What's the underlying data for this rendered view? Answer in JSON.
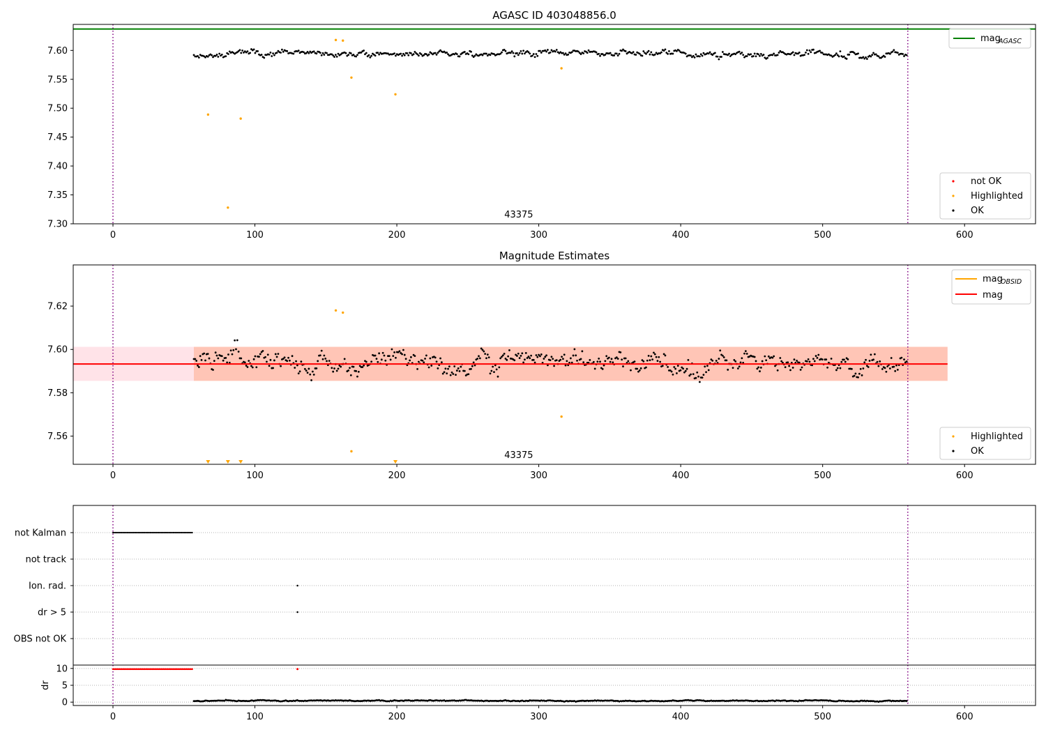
{
  "chart_data": [
    {
      "type": "scatter",
      "title": "AGASC ID 403048856.0",
      "xlim": [
        -28,
        650
      ],
      "ylim": [
        7.3,
        7.645
      ],
      "x_ticks": [
        0,
        100,
        200,
        300,
        400,
        500,
        600
      ],
      "y_ticks": [
        7.3,
        7.35,
        7.4,
        7.45,
        7.5,
        7.55,
        7.6
      ],
      "y_tick_labels": [
        "7.30",
        "7.35",
        "7.40",
        "7.45",
        "7.50",
        "7.55",
        "7.60"
      ],
      "vlines": [
        0,
        560
      ],
      "hline": {
        "name": "mag_AGASC",
        "value": 7.637,
        "color": "#008000"
      },
      "annotation": {
        "text": "43375",
        "x": 280
      },
      "line_legend": {
        "position": "upper right",
        "items": [
          {
            "label": "mag",
            "sub": "AGASC",
            "color": "#008000"
          }
        ]
      },
      "point_legend": {
        "position": "lower right",
        "items": [
          {
            "label": "not OK",
            "color": "#ff0000"
          },
          {
            "label": "Highlighted",
            "color": "#ffa500"
          },
          {
            "label": "OK",
            "color": "#000000"
          }
        ]
      },
      "ok_series": {
        "x_start": 57,
        "x_end": 560,
        "mean": 7.594,
        "spread": 0.01
      },
      "highlighted": [
        {
          "x": 67,
          "y": 7.489
        },
        {
          "x": 81,
          "y": 7.328
        },
        {
          "x": 90,
          "y": 7.482
        },
        {
          "x": 157,
          "y": 7.618
        },
        {
          "x": 162,
          "y": 7.617
        },
        {
          "x": 168,
          "y": 7.553
        },
        {
          "x": 199,
          "y": 7.524
        },
        {
          "x": 316,
          "y": 7.569
        }
      ]
    },
    {
      "type": "scatter",
      "title": "Magnitude Estimates",
      "xlim": [
        -28,
        650
      ],
      "ylim": [
        7.547,
        7.639
      ],
      "x_ticks": [
        0,
        100,
        200,
        300,
        400,
        500,
        600
      ],
      "y_ticks": [
        7.56,
        7.58,
        7.6,
        7.62
      ],
      "y_tick_labels": [
        "7.56",
        "7.58",
        "7.60",
        "7.62"
      ],
      "vlines": [
        0,
        560
      ],
      "band_outer": {
        "x0": -28,
        "x1": 588,
        "y0": 7.5855,
        "y1": 7.6012,
        "color": "#ffc0cb"
      },
      "band_inner": {
        "x0": 57,
        "x1": 588,
        "y0": 7.5855,
        "y1": 7.6012,
        "color": "#ffa07a"
      },
      "mag_line": {
        "name": "mag",
        "value": 7.5933,
        "x0": -28,
        "x1": 588,
        "color": "#ff0000"
      },
      "annotation": {
        "text": "43375",
        "x": 280
      },
      "line_legend": {
        "position": "upper right",
        "items": [
          {
            "label": "mag",
            "sub": "OBSID",
            "color": "#ffa500"
          },
          {
            "label": "mag",
            "sub": "",
            "color": "#ff0000"
          }
        ]
      },
      "point_legend": {
        "position": "lower right",
        "items": [
          {
            "label": "Highlighted",
            "color": "#ffa500"
          },
          {
            "label": "OK",
            "color": "#000000"
          }
        ]
      },
      "ok_series": {
        "x_start": 57,
        "x_end": 560,
        "mean": 7.594,
        "spread": 0.009
      },
      "highlighted": [
        {
          "x": 157,
          "y": 7.618
        },
        {
          "x": 162,
          "y": 7.617
        },
        {
          "x": 168,
          "y": 7.553
        },
        {
          "x": 316,
          "y": 7.569
        }
      ],
      "off_scale_markers_x": [
        67,
        81,
        90,
        199
      ]
    },
    {
      "type": "scatter",
      "title": "",
      "xlim": [
        -28,
        650
      ],
      "categories": [
        "not Kalman",
        "not track",
        "Ion. rad.",
        "dr > 5",
        "OBS not OK"
      ],
      "flag_points": [
        {
          "category": "not Kalman",
          "x_start": 0,
          "x_end": 56
        },
        {
          "category": "Ion. rad.",
          "x": 130
        },
        {
          "category": "dr > 5",
          "x": 130
        }
      ],
      "vlines": [
        0,
        560
      ]
    },
    {
      "type": "scatter",
      "ylabel": "dr",
      "xlim": [
        -28,
        650
      ],
      "ylim": [
        -1,
        11
      ],
      "x_ticks": [
        0,
        100,
        200,
        300,
        400,
        500,
        600
      ],
      "y_ticks": [
        0,
        5,
        10
      ],
      "y_tick_labels": [
        "0",
        "5",
        "10"
      ],
      "vlines": [
        0,
        560
      ],
      "red_points": {
        "x_start": 0,
        "x_end": 56,
        "y": 9.8,
        "extra_x": 130
      },
      "ok_series": {
        "x_start": 57,
        "x_end": 560,
        "mean": 0.45,
        "spread": 0.3
      }
    }
  ],
  "colors": {
    "ok": "#000000",
    "highlighted": "#ffa500",
    "not_ok": "#ff0000",
    "vline": "#800080",
    "grid": "#b0b0b0"
  }
}
